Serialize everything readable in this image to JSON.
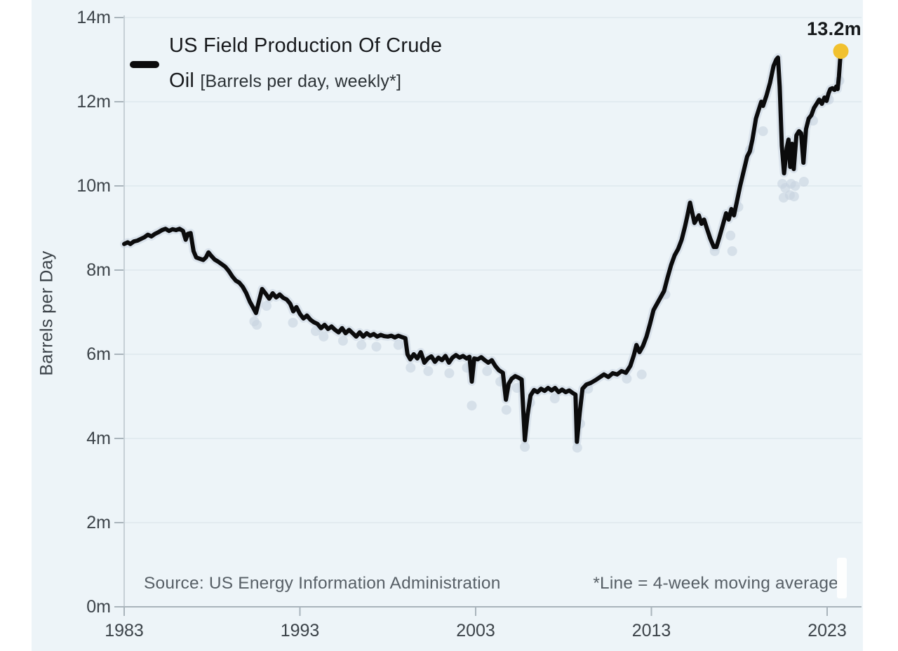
{
  "chart_data": {
    "type": "line",
    "title": "US Field Production Of Crude Oil",
    "title_detail": "[Barrels per day, weekly*]",
    "ylabel": "Barrels per Day",
    "source": "Source: US Energy Information Administration",
    "footnote": "*Line = 4-week moving average",
    "legend": {
      "line1": "US Field Production Of Crude",
      "line2_main": "Oil",
      "line2_detail": "[Barrels per day, weekly*]",
      "swatch_color": "#0b0b0c",
      "position": "top-left"
    },
    "annotation": {
      "label": "13.2m",
      "x": 2023.78,
      "y": 13.2,
      "dot_color": "#f1c12f"
    },
    "grid": true,
    "xlim": [
      1983,
      2024.1
    ],
    "ylim": [
      0,
      14
    ],
    "x_ticks": [
      {
        "label": "1983",
        "value": 1983
      },
      {
        "label": "1993",
        "value": 1993
      },
      {
        "label": "2003",
        "value": 2003
      },
      {
        "label": "2013",
        "value": 2013
      },
      {
        "label": "2023",
        "value": 2023
      }
    ],
    "y_ticks": [
      {
        "label": "0m",
        "value": 0
      },
      {
        "label": "2m",
        "value": 2
      },
      {
        "label": "4m",
        "value": 4
      },
      {
        "label": "6m",
        "value": 6
      },
      {
        "label": "8m",
        "value": 8
      },
      {
        "label": "10m",
        "value": 10
      },
      {
        "label": "12m",
        "value": 12
      },
      {
        "label": "14m",
        "value": 14
      }
    ],
    "colors": {
      "background": "#edf4f8",
      "grid": "#dfe8ee",
      "axis": "#a9b4bb",
      "halo": "#c7d2e0",
      "text": "#3c4349"
    },
    "series": [
      {
        "name": "US Field Production Of Crude Oil (4-week moving average, million barrels per day)",
        "color": "#0b0b0c",
        "points": [
          [
            1983.0,
            8.62
          ],
          [
            1983.2,
            8.66
          ],
          [
            1983.35,
            8.62
          ],
          [
            1983.55,
            8.68
          ],
          [
            1983.75,
            8.7
          ],
          [
            1983.95,
            8.74
          ],
          [
            1984.15,
            8.78
          ],
          [
            1984.35,
            8.84
          ],
          [
            1984.55,
            8.8
          ],
          [
            1984.75,
            8.86
          ],
          [
            1984.95,
            8.9
          ],
          [
            1985.15,
            8.95
          ],
          [
            1985.35,
            8.98
          ],
          [
            1985.55,
            8.93
          ],
          [
            1985.75,
            8.97
          ],
          [
            1985.95,
            8.95
          ],
          [
            1986.15,
            8.98
          ],
          [
            1986.35,
            8.93
          ],
          [
            1986.5,
            8.72
          ],
          [
            1986.62,
            8.86
          ],
          [
            1986.78,
            8.88
          ],
          [
            1986.95,
            8.45
          ],
          [
            1987.1,
            8.3
          ],
          [
            1987.3,
            8.27
          ],
          [
            1987.5,
            8.24
          ],
          [
            1987.65,
            8.3
          ],
          [
            1987.8,
            8.42
          ],
          [
            1987.95,
            8.34
          ],
          [
            1988.15,
            8.25
          ],
          [
            1988.35,
            8.2
          ],
          [
            1988.55,
            8.14
          ],
          [
            1988.75,
            8.08
          ],
          [
            1988.95,
            7.98
          ],
          [
            1989.15,
            7.85
          ],
          [
            1989.35,
            7.75
          ],
          [
            1989.55,
            7.7
          ],
          [
            1989.75,
            7.6
          ],
          [
            1989.95,
            7.45
          ],
          [
            1990.15,
            7.25
          ],
          [
            1990.35,
            7.1
          ],
          [
            1990.5,
            6.98
          ],
          [
            1990.68,
            7.28
          ],
          [
            1990.85,
            7.55
          ],
          [
            1991.05,
            7.44
          ],
          [
            1991.25,
            7.32
          ],
          [
            1991.45,
            7.45
          ],
          [
            1991.65,
            7.35
          ],
          [
            1991.85,
            7.42
          ],
          [
            1992.05,
            7.34
          ],
          [
            1992.25,
            7.3
          ],
          [
            1992.45,
            7.2
          ],
          [
            1992.62,
            7.02
          ],
          [
            1992.8,
            7.12
          ],
          [
            1993.0,
            6.96
          ],
          [
            1993.2,
            6.85
          ],
          [
            1993.4,
            6.92
          ],
          [
            1993.6,
            6.82
          ],
          [
            1993.8,
            6.76
          ],
          [
            1994.0,
            6.72
          ],
          [
            1994.2,
            6.62
          ],
          [
            1994.4,
            6.7
          ],
          [
            1994.6,
            6.6
          ],
          [
            1994.8,
            6.66
          ],
          [
            1995.0,
            6.58
          ],
          [
            1995.2,
            6.52
          ],
          [
            1995.4,
            6.62
          ],
          [
            1995.6,
            6.5
          ],
          [
            1995.8,
            6.58
          ],
          [
            1996.0,
            6.5
          ],
          [
            1996.2,
            6.42
          ],
          [
            1996.4,
            6.52
          ],
          [
            1996.6,
            6.42
          ],
          [
            1996.8,
            6.5
          ],
          [
            1997.0,
            6.44
          ],
          [
            1997.2,
            6.48
          ],
          [
            1997.4,
            6.42
          ],
          [
            1997.6,
            6.46
          ],
          [
            1997.8,
            6.43
          ],
          [
            1998.0,
            6.42
          ],
          [
            1998.2,
            6.44
          ],
          [
            1998.4,
            6.4
          ],
          [
            1998.6,
            6.44
          ],
          [
            1998.8,
            6.41
          ],
          [
            1999.0,
            6.38
          ],
          [
            1999.12,
            6.0
          ],
          [
            1999.28,
            5.88
          ],
          [
            1999.48,
            6.0
          ],
          [
            1999.68,
            5.9
          ],
          [
            1999.88,
            6.05
          ],
          [
            2000.08,
            5.8
          ],
          [
            2000.28,
            5.9
          ],
          [
            2000.48,
            5.95
          ],
          [
            2000.68,
            5.82
          ],
          [
            2000.88,
            5.92
          ],
          [
            2001.08,
            5.86
          ],
          [
            2001.28,
            5.96
          ],
          [
            2001.48,
            5.8
          ],
          [
            2001.68,
            5.92
          ],
          [
            2001.88,
            5.98
          ],
          [
            2002.08,
            5.92
          ],
          [
            2002.28,
            5.96
          ],
          [
            2002.48,
            5.9
          ],
          [
            2002.65,
            5.94
          ],
          [
            2002.78,
            5.35
          ],
          [
            2002.92,
            5.9
          ],
          [
            2003.12,
            5.88
          ],
          [
            2003.32,
            5.93
          ],
          [
            2003.52,
            5.86
          ],
          [
            2003.72,
            5.8
          ],
          [
            2003.92,
            5.86
          ],
          [
            2004.12,
            5.72
          ],
          [
            2004.32,
            5.62
          ],
          [
            2004.55,
            5.56
          ],
          [
            2004.72,
            4.92
          ],
          [
            2004.88,
            5.3
          ],
          [
            2005.05,
            5.42
          ],
          [
            2005.25,
            5.48
          ],
          [
            2005.45,
            5.44
          ],
          [
            2005.62,
            5.4
          ],
          [
            2005.73,
            4.5
          ],
          [
            2005.8,
            3.96
          ],
          [
            2005.95,
            4.55
          ],
          [
            2006.12,
            5.02
          ],
          [
            2006.32,
            5.15
          ],
          [
            2006.52,
            5.1
          ],
          [
            2006.72,
            5.18
          ],
          [
            2006.92,
            5.13
          ],
          [
            2007.12,
            5.2
          ],
          [
            2007.32,
            5.14
          ],
          [
            2007.52,
            5.2
          ],
          [
            2007.72,
            5.1
          ],
          [
            2007.92,
            5.16
          ],
          [
            2008.12,
            5.1
          ],
          [
            2008.32,
            5.14
          ],
          [
            2008.52,
            5.08
          ],
          [
            2008.68,
            5.04
          ],
          [
            2008.76,
            3.92
          ],
          [
            2008.92,
            4.6
          ],
          [
            2009.08,
            5.18
          ],
          [
            2009.3,
            5.28
          ],
          [
            2009.55,
            5.32
          ],
          [
            2009.8,
            5.38
          ],
          [
            2010.05,
            5.45
          ],
          [
            2010.3,
            5.52
          ],
          [
            2010.55,
            5.46
          ],
          [
            2010.8,
            5.55
          ],
          [
            2011.05,
            5.52
          ],
          [
            2011.3,
            5.6
          ],
          [
            2011.55,
            5.56
          ],
          [
            2011.8,
            5.72
          ],
          [
            2012.0,
            5.98
          ],
          [
            2012.15,
            6.22
          ],
          [
            2012.32,
            6.05
          ],
          [
            2012.52,
            6.2
          ],
          [
            2012.72,
            6.42
          ],
          [
            2012.92,
            6.72
          ],
          [
            2013.12,
            7.05
          ],
          [
            2013.32,
            7.2
          ],
          [
            2013.52,
            7.35
          ],
          [
            2013.72,
            7.5
          ],
          [
            2013.92,
            7.82
          ],
          [
            2014.12,
            8.12
          ],
          [
            2014.32,
            8.35
          ],
          [
            2014.52,
            8.5
          ],
          [
            2014.72,
            8.72
          ],
          [
            2014.92,
            9.05
          ],
          [
            2015.05,
            9.3
          ],
          [
            2015.2,
            9.6
          ],
          [
            2015.45,
            9.12
          ],
          [
            2015.7,
            9.3
          ],
          [
            2015.85,
            9.1
          ],
          [
            2016.0,
            9.2
          ],
          [
            2016.15,
            9.0
          ],
          [
            2016.35,
            8.75
          ],
          [
            2016.55,
            8.55
          ],
          [
            2016.7,
            8.55
          ],
          [
            2016.85,
            8.75
          ],
          [
            2017.05,
            9.05
          ],
          [
            2017.25,
            9.35
          ],
          [
            2017.4,
            9.2
          ],
          [
            2017.55,
            9.45
          ],
          [
            2017.7,
            9.3
          ],
          [
            2017.85,
            9.6
          ],
          [
            2018.05,
            10.0
          ],
          [
            2018.25,
            10.35
          ],
          [
            2018.45,
            10.7
          ],
          [
            2018.6,
            10.82
          ],
          [
            2018.75,
            11.1
          ],
          [
            2018.95,
            11.6
          ],
          [
            2019.1,
            11.8
          ],
          [
            2019.25,
            12.0
          ],
          [
            2019.35,
            11.9
          ],
          [
            2019.55,
            12.15
          ],
          [
            2019.75,
            12.45
          ],
          [
            2019.95,
            12.85
          ],
          [
            2020.1,
            13.0
          ],
          [
            2020.2,
            13.05
          ],
          [
            2020.3,
            12.35
          ],
          [
            2020.42,
            10.95
          ],
          [
            2020.55,
            10.3
          ],
          [
            2020.7,
            10.9
          ],
          [
            2020.8,
            11.1
          ],
          [
            2020.9,
            10.45
          ],
          [
            2021.0,
            11.0
          ],
          [
            2021.1,
            10.4
          ],
          [
            2021.25,
            11.2
          ],
          [
            2021.4,
            11.3
          ],
          [
            2021.52,
            11.25
          ],
          [
            2021.65,
            10.55
          ],
          [
            2021.8,
            11.35
          ],
          [
            2021.95,
            11.6
          ],
          [
            2022.1,
            11.68
          ],
          [
            2022.25,
            11.85
          ],
          [
            2022.4,
            11.95
          ],
          [
            2022.55,
            12.05
          ],
          [
            2022.7,
            11.95
          ],
          [
            2022.85,
            12.1
          ],
          [
            2022.97,
            12.02
          ],
          [
            2023.08,
            12.2
          ],
          [
            2023.18,
            12.3
          ],
          [
            2023.3,
            12.32
          ],
          [
            2023.42,
            12.28
          ],
          [
            2023.52,
            12.36
          ],
          [
            2023.6,
            12.3
          ],
          [
            2023.67,
            12.6
          ],
          [
            2023.73,
            12.95
          ],
          [
            2023.78,
            13.2
          ]
        ]
      }
    ],
    "weekly_scatter": {
      "name": "weekly raw values",
      "color": "#c7d2e0",
      "points": [
        [
          1990.4,
          6.78
        ],
        [
          1990.55,
          6.7
        ],
        [
          1991.1,
          7.15
        ],
        [
          1992.6,
          6.75
        ],
        [
          1993.9,
          6.55
        ],
        [
          1994.35,
          6.42
        ],
        [
          1995.45,
          6.32
        ],
        [
          1996.5,
          6.22
        ],
        [
          1997.35,
          6.18
        ],
        [
          1998.6,
          6.22
        ],
        [
          1999.3,
          5.68
        ],
        [
          2000.3,
          5.6
        ],
        [
          2001.5,
          5.55
        ],
        [
          2002.5,
          5.68
        ],
        [
          2002.78,
          4.78
        ],
        [
          2003.65,
          5.6
        ],
        [
          2004.4,
          5.35
        ],
        [
          2004.75,
          4.68
        ],
        [
          2005.35,
          5.2
        ],
        [
          2005.8,
          3.8
        ],
        [
          2006.1,
          4.85
        ],
        [
          2007.5,
          4.95
        ],
        [
          2008.78,
          3.78
        ],
        [
          2008.95,
          4.35
        ],
        [
          2009.4,
          5.18
        ],
        [
          2011.6,
          5.42
        ],
        [
          2012.45,
          5.52
        ],
        [
          2013.8,
          7.42
        ],
        [
          2016.6,
          8.45
        ],
        [
          2017.5,
          8.82
        ],
        [
          2017.6,
          8.45
        ],
        [
          2017.95,
          9.5
        ],
        [
          2018.6,
          10.85
        ],
        [
          2019.35,
          11.3
        ],
        [
          2020.45,
          10.05
        ],
        [
          2020.52,
          9.72
        ],
        [
          2020.62,
          9.95
        ],
        [
          2020.88,
          9.78
        ],
        [
          2020.95,
          10.05
        ],
        [
          2021.12,
          9.75
        ],
        [
          2021.18,
          10.0
        ],
        [
          2021.68,
          10.1
        ],
        [
          2022.2,
          11.55
        ],
        [
          2023.1,
          12.05
        ],
        [
          2023.7,
          12.5
        ]
      ]
    }
  }
}
